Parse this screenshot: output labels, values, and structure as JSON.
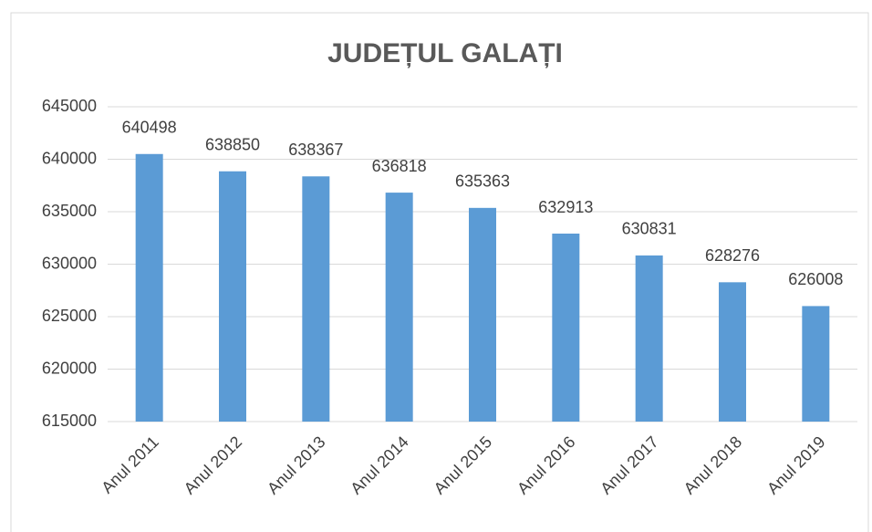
{
  "chart_data": {
    "type": "bar",
    "title": "JUDEȚUL GALAȚI",
    "categories": [
      "Anul 2011",
      "Anul 2012",
      "Anul 2013",
      "Anul 2014",
      "Anul 2015",
      "Anul 2016",
      "Anul 2017",
      "Anul 2018",
      "Anul 2019"
    ],
    "values": [
      640498,
      638850,
      638367,
      636818,
      635363,
      632913,
      630831,
      628276,
      626008
    ],
    "color": "#5b9bd5",
    "ylim": [
      615000,
      645000
    ],
    "yticks": [
      615000,
      620000,
      625000,
      630000,
      635000,
      640000,
      645000
    ],
    "grid": true
  }
}
